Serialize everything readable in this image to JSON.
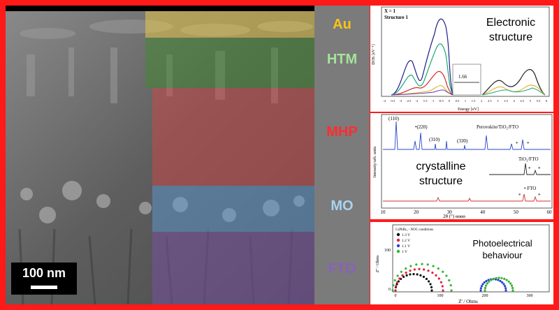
{
  "layers": [
    {
      "id": "au",
      "label": "Au",
      "color": "#f5c518",
      "overlay": "#d8b640"
    },
    {
      "id": "htm",
      "label": "HTM",
      "color": "#a6e39b",
      "overlay": "#3e7a31"
    },
    {
      "id": "mhp",
      "label": "MHP",
      "color": "#ff2d2d",
      "overlay": "#b84545"
    },
    {
      "id": "mo",
      "label": "MO",
      "color": "#a9d2f2",
      "overlay": "#5a8fc4"
    },
    {
      "id": "fto",
      "label": "FTO",
      "color": "#8b5fbf",
      "overlay": "#6b4a8f"
    }
  ],
  "scale_bar": {
    "label": "100 nm"
  },
  "panels": {
    "electronic": {
      "caption_line1": "Electronic",
      "caption_line2": "structure",
      "header_line1": "X = 1",
      "header_line2": "Structure 1",
      "ylabel": "DOS [eV⁻¹]",
      "xlabel": "Energy [eV]",
      "gap_label": "1.66",
      "x_ticks": [
        "-4",
        "-3.5",
        "-3",
        "-2.5",
        "-2",
        "-1.5",
        "-1",
        "-0.5",
        "0",
        "0.5",
        "1",
        "1.5",
        "2",
        "2.5",
        "3",
        "3.5",
        "4",
        "4.5",
        "5",
        "5.5",
        "6"
      ]
    },
    "xrd": {
      "caption_line1": "crystalline",
      "caption_line2": "structure",
      "ylabel": "Intensity/arb. units",
      "xlabel": "2θ (°) ɵɵɵɵ",
      "x_ticks": [
        "10",
        "20",
        "30",
        "40",
        "50",
        "60"
      ],
      "peak_labels": [
        "(110)",
        "•(220)",
        "(310)",
        "(330)"
      ],
      "trace_labels": [
        "Perovskite/TiO₂/FTO",
        "TiO₂/FTO",
        "• FTO"
      ],
      "star_marks": [
        "*",
        "*",
        "*",
        "*",
        "*",
        "*"
      ]
    },
    "impedance": {
      "caption_line1": "Photoelectrical",
      "caption_line2": "behaviour",
      "header": "CsPbBr₃ - NOC conditions",
      "ylabel": "Z'' / Ohms",
      "xlabel": "Z' / Ohms",
      "x_ticks": [
        "0",
        "100",
        "200",
        "300"
      ],
      "y_ticks": [
        "0",
        "100"
      ],
      "legend": [
        {
          "label": "1.3 V",
          "color": "#111111"
        },
        {
          "label": "1.2 V",
          "color": "#e0203a"
        },
        {
          "label": "1.1 V",
          "color": "#2a3fd8"
        },
        {
          "label": "1 V",
          "color": "#35b335"
        }
      ]
    }
  }
}
